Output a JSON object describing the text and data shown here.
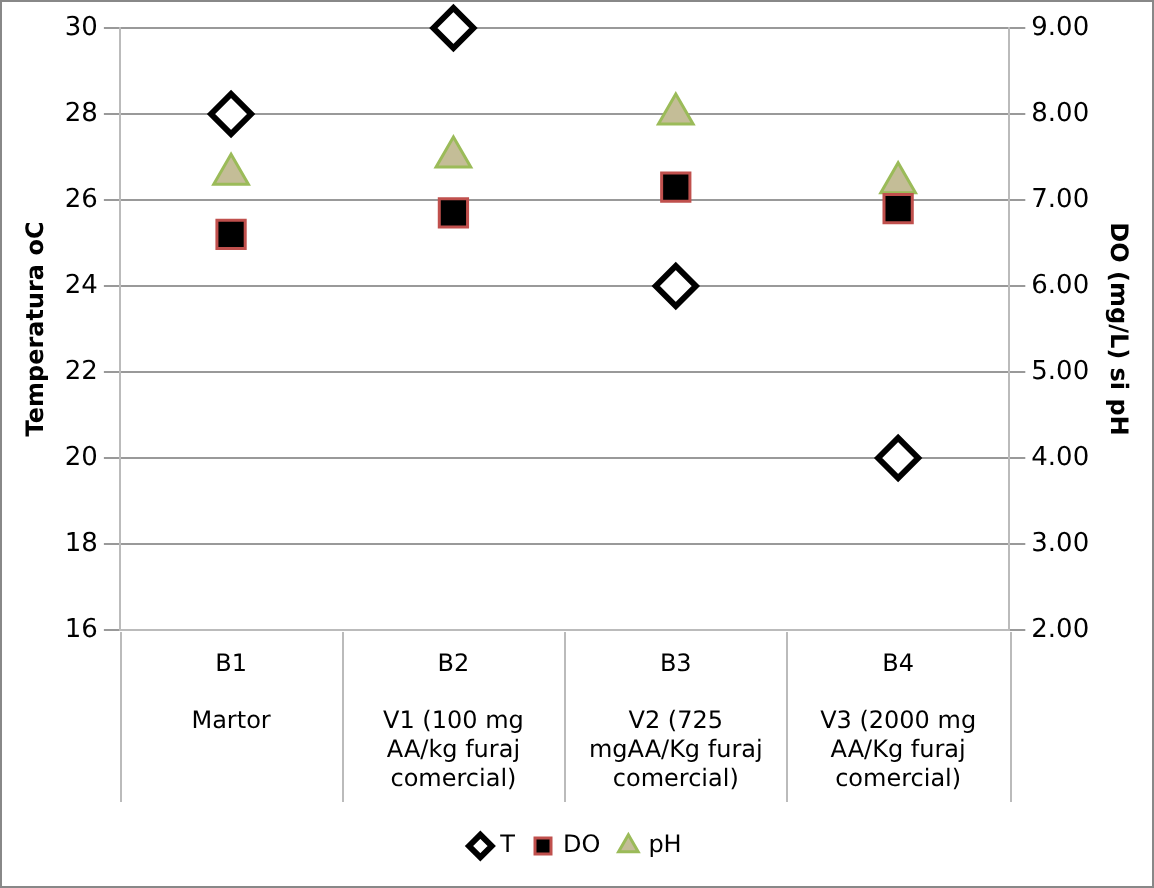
{
  "chart_data": {
    "type": "scatter",
    "categories": [
      "B1\nMartor",
      "B2\nV1 (100 mg AA/kg furaj comercial)",
      "B3\nV2 (725 mgAA/Kg furaj comercial)",
      "B4\nV3 (2000 mg AA/Kg furaj comercial)"
    ],
    "ylabel": "Temperatura oC",
    "y2label": "DO (mg/L) si pH",
    "ylim": [
      16,
      30
    ],
    "yticks": [
      16,
      18,
      20,
      22,
      24,
      26,
      28,
      30
    ],
    "y2lim": [
      2,
      9
    ],
    "y2ticks": [
      {
        "value": 2,
        "label": "2.00"
      },
      {
        "value": 3,
        "label": "3.00"
      },
      {
        "value": 4,
        "label": "4.00"
      },
      {
        "value": 5,
        "label": "5.00"
      },
      {
        "value": 6,
        "label": "6.00"
      },
      {
        "value": 7,
        "label": "7.00"
      },
      {
        "value": 8,
        "label": "8.00"
      },
      {
        "value": 9,
        "label": "9.00"
      }
    ],
    "series": [
      {
        "name": "T",
        "color": "#000000",
        "marker": "diamond",
        "values": [
          28,
          30,
          24,
          20
        ]
      },
      {
        "name": "DO",
        "color": "#000000",
        "marker": "square",
        "axis": "y2",
        "values": [
          6.6,
          6.85,
          7.15,
          6.9
        ]
      },
      {
        "name": "pH",
        "color": "#c4bd97",
        "marker": "triangle",
        "axis": "y2",
        "values": [
          7.3,
          7.5,
          8.0,
          7.2
        ]
      }
    ],
    "grid": "y",
    "legend": "bottom"
  }
}
